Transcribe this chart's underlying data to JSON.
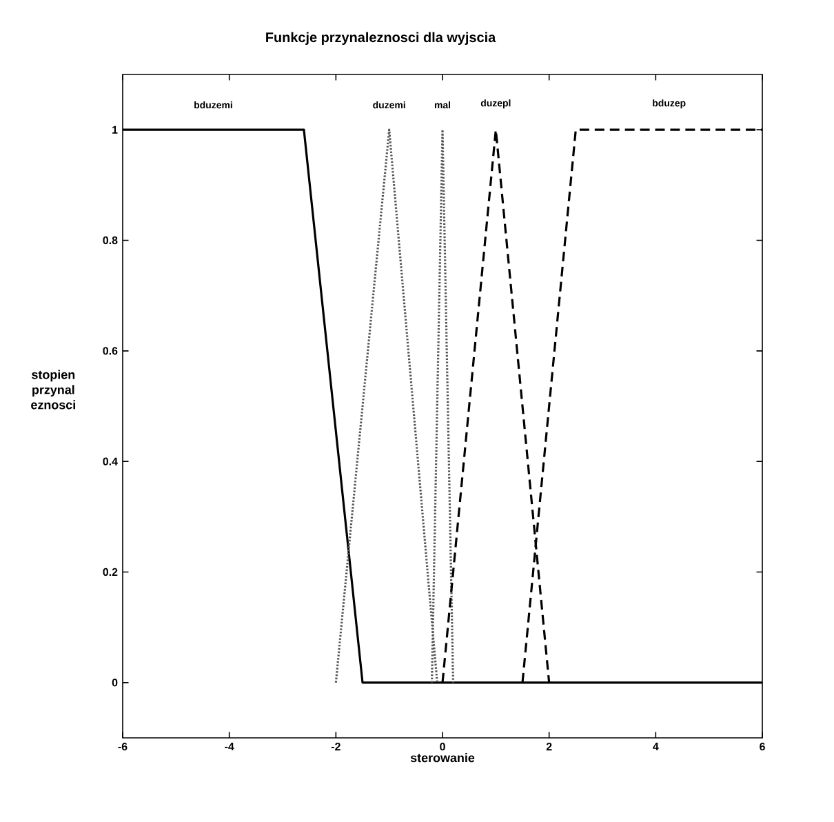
{
  "chart_data": {
    "type": "line",
    "title": "Funkcje przynaleznosci dla wyjscia",
    "xlabel": "sterowanie",
    "ylabel": "stopien przynal eznosci",
    "xlim": [
      -6,
      6
    ],
    "ylim": [
      -0.1,
      1.1
    ],
    "xticks": [
      -6,
      -4,
      -2,
      0,
      2,
      4,
      6
    ],
    "yticks": [
      0,
      0.2,
      0.4,
      0.6,
      0.8,
      1
    ],
    "grid": false,
    "legend": false,
    "series": [
      {
        "name": "bduzemi",
        "color": "#000000",
        "line_style": "solid",
        "x": [
          -6,
          -2.6,
          -1.5,
          6
        ],
        "values": [
          1,
          1,
          0,
          0
        ]
      },
      {
        "name": "duzemi",
        "color": "#555555",
        "line_style": "dotted",
        "x": [
          -2,
          -1,
          -0.1
        ],
        "values": [
          0,
          1,
          0
        ]
      },
      {
        "name": "mal",
        "color": "#555555",
        "line_style": "dotted",
        "x": [
          -0.2,
          0,
          0.2
        ],
        "values": [
          0,
          1,
          0
        ]
      },
      {
        "name": "duzepl",
        "color": "#000000",
        "line_style": "dashed",
        "x": [
          0,
          1,
          2
        ],
        "values": [
          0,
          1,
          0
        ]
      },
      {
        "name": "bduzep",
        "color": "#000000",
        "line_style": "dashed",
        "x": [
          1.5,
          2.5,
          6
        ],
        "values": [
          0,
          1,
          1
        ]
      }
    ]
  }
}
